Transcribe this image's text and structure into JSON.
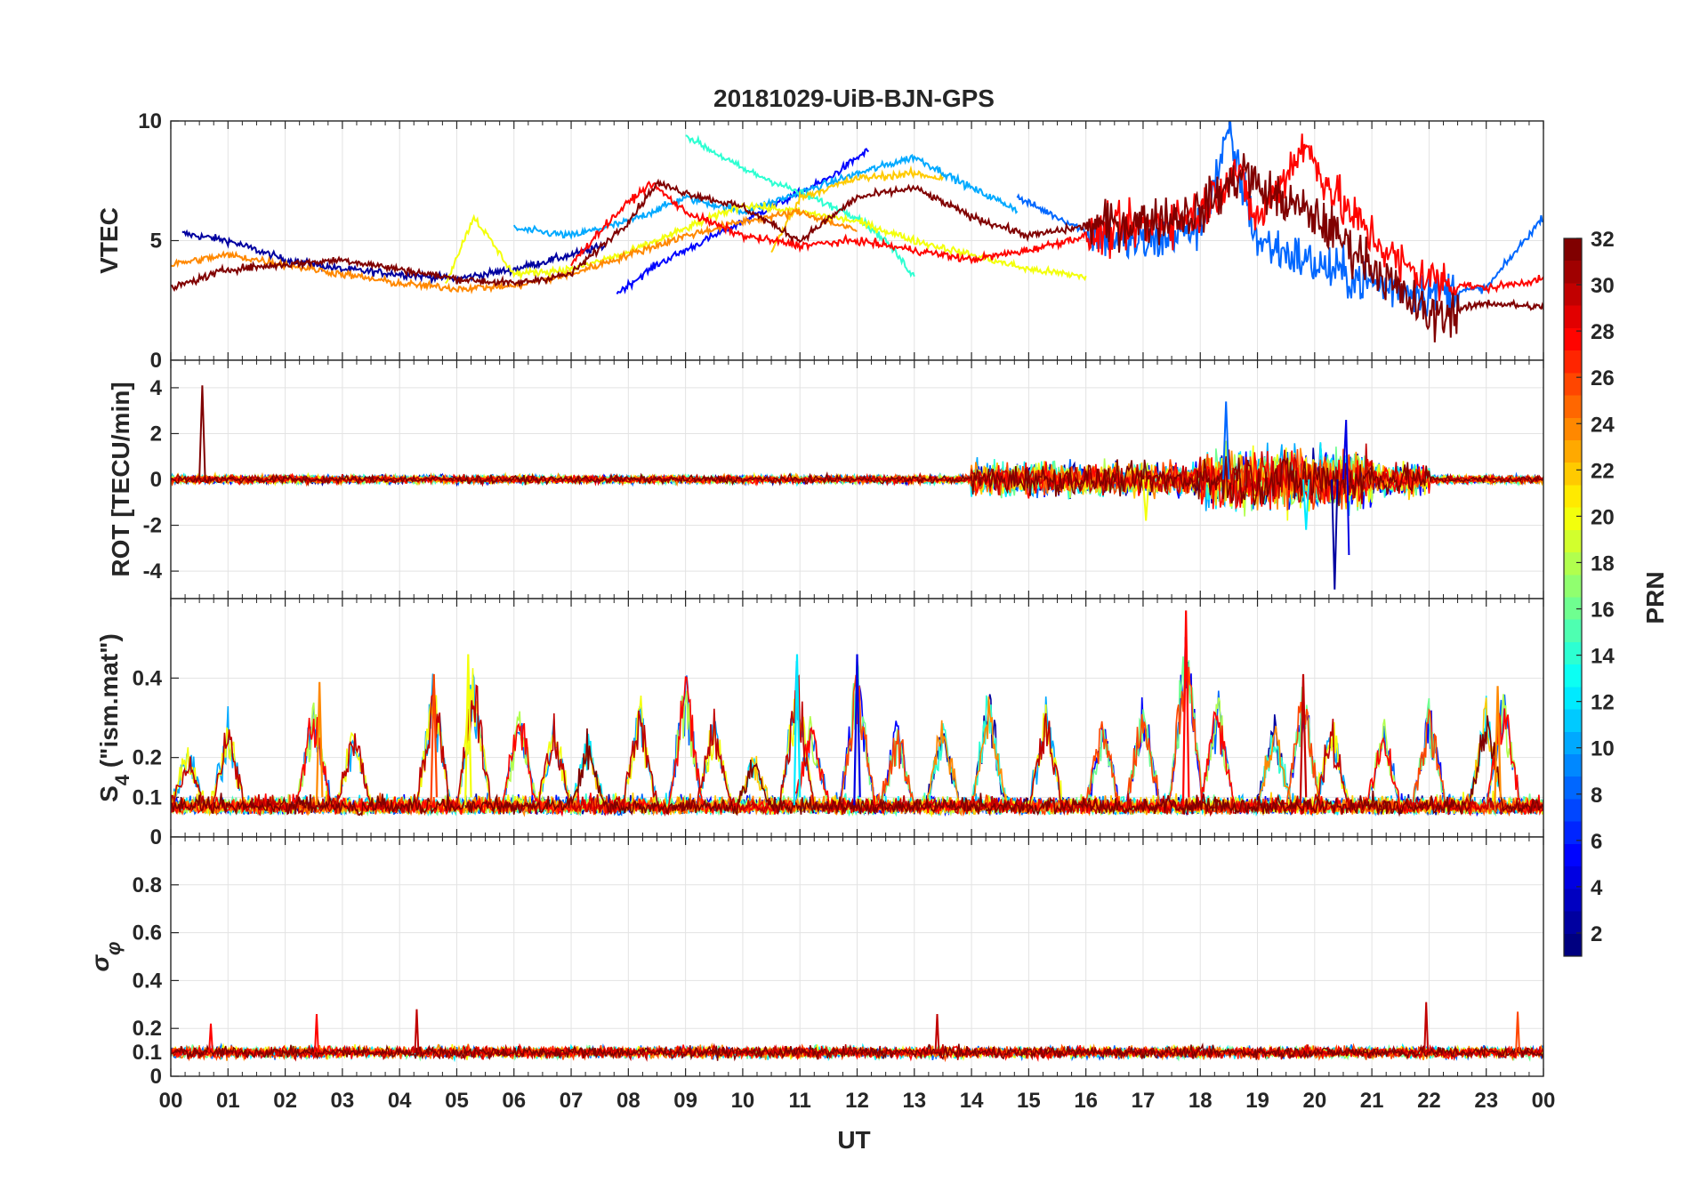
{
  "chart_data": {
    "type": "line",
    "title": "20181029-UiB-BJN-GPS",
    "xlabel": "UT",
    "xlim": [
      0,
      24
    ],
    "x_tick_labels": [
      "00",
      "01",
      "02",
      "03",
      "04",
      "05",
      "06",
      "07",
      "08",
      "09",
      "10",
      "11",
      "12",
      "13",
      "14",
      "15",
      "16",
      "17",
      "18",
      "19",
      "20",
      "21",
      "22",
      "23",
      "00"
    ],
    "grid": true,
    "colormap": "jet",
    "colorbar": {
      "label": "PRN",
      "range": [
        1,
        32
      ],
      "ticks": [
        "2",
        "4",
        "6",
        "8",
        "10",
        "12",
        "14",
        "16",
        "18",
        "20",
        "22",
        "24",
        "26",
        "28",
        "30",
        "32"
      ],
      "placement": "right"
    },
    "panels": [
      {
        "ylabel": "VTEC",
        "ylim": [
          0,
          10
        ],
        "y_ticks": [
          "0",
          "5",
          "10"
        ],
        "series": [
          {
            "prn": 2,
            "x": [
              0.2,
              1.0,
              2.0,
              3.0,
              4.0,
              5.0,
              6.0,
              7.0,
              7.6
            ],
            "y": [
              5.3,
              5.0,
              4.2,
              3.8,
              3.6,
              3.4,
              3.8,
              4.4,
              4.8
            ]
          },
          {
            "prn": 5,
            "x": [
              7.8,
              8.5,
              9.5,
              10.5,
              11.5,
              12.2
            ],
            "y": [
              2.8,
              4.0,
              5.2,
              6.4,
              7.6,
              8.8
            ]
          },
          {
            "prn": 10,
            "x": [
              6.0,
              7.0,
              8.0,
              9.0,
              10.0,
              11.0,
              12.0,
              13.0,
              14.0,
              14.8
            ],
            "y": [
              5.5,
              5.2,
              5.8,
              6.8,
              6.2,
              7.0,
              7.8,
              8.5,
              7.2,
              6.3
            ]
          },
          {
            "prn": 8,
            "x": [
              14.8,
              16.0,
              17.0,
              18.0,
              18.5,
              19.0,
              20.0,
              21.0,
              22.0,
              23.0,
              24.0
            ],
            "y": [
              6.8,
              5.4,
              4.8,
              5.6,
              9.4,
              5.0,
              4.0,
              3.2,
              2.8,
              3.0,
              6.0
            ]
          },
          {
            "prn": 14,
            "x": [
              9.0,
              10.0,
              11.0,
              12.0,
              12.5,
              13.0
            ],
            "y": [
              9.4,
              8.0,
              7.0,
              6.0,
              5.0,
              3.5
            ]
          },
          {
            "prn": 20,
            "x": [
              4.8,
              5.3,
              6.0,
              7.0,
              8.0,
              9.0,
              10.0,
              11.0,
              12.0,
              13.0,
              14.0,
              15.0,
              16.0
            ],
            "y": [
              3.2,
              6.0,
              3.6,
              3.8,
              4.5,
              5.5,
              6.5,
              6.2,
              5.8,
              5.0,
              4.4,
              3.8,
              3.5
            ]
          },
          {
            "prn": 22,
            "x": [
              10.5,
              11.0,
              12.0,
              13.0,
              13.5
            ],
            "y": [
              4.5,
              6.8,
              7.6,
              7.8,
              7.6
            ]
          },
          {
            "prn": 24,
            "x": [
              0.0,
              1.0,
              2.0,
              3.0,
              4.0,
              5.0,
              6.0,
              7.0,
              8.0,
              9.0,
              10.0,
              11.0,
              12.0
            ],
            "y": [
              4.0,
              4.4,
              4.0,
              3.6,
              3.2,
              3.0,
              3.1,
              3.6,
              4.4,
              5.2,
              5.8,
              6.2,
              5.4
            ]
          },
          {
            "prn": 28,
            "x": [
              7.0,
              7.5,
              8.0,
              8.4,
              9.0,
              10.0,
              11.0,
              12.0,
              13.0,
              14.0,
              15.0,
              16.0,
              17.0,
              18.0,
              18.6,
              19.0,
              19.8,
              20.5,
              21.5,
              22.0,
              23.0,
              24.0
            ],
            "y": [
              4.0,
              5.4,
              6.6,
              7.4,
              6.2,
              5.2,
              4.8,
              5.0,
              4.6,
              4.2,
              4.6,
              5.2,
              5.6,
              6.2,
              8.0,
              5.8,
              9.0,
              6.4,
              4.0,
              3.4,
              3.0,
              3.4
            ]
          },
          {
            "prn": 32,
            "x": [
              0.0,
              1.0,
              2.0,
              3.0,
              4.0,
              5.0,
              6.0,
              7.0,
              8.0,
              8.5,
              9.0,
              10.0,
              11.0,
              12.0,
              13.0,
              14.0,
              15.0,
              16.0,
              17.0,
              18.0,
              18.8,
              19.0,
              20.0,
              21.0,
              21.5,
              22.0,
              23.0,
              24.0
            ],
            "y": [
              3.0,
              3.8,
              4.0,
              4.2,
              3.8,
              3.4,
              3.2,
              3.6,
              5.8,
              7.4,
              7.0,
              6.4,
              5.0,
              6.8,
              7.2,
              6.0,
              5.2,
              5.6,
              5.8,
              6.2,
              8.0,
              7.2,
              6.0,
              4.0,
              2.8,
              1.8,
              2.4,
              2.2
            ]
          }
        ]
      },
      {
        "ylabel": "ROT [TECU/min]",
        "ylim": [
          -5.2,
          5.2
        ],
        "y_ticks": [
          "-4",
          "-2",
          "0",
          "2",
          "4"
        ],
        "series": [
          {
            "prn": 32,
            "x": [
              0.5,
              0.55,
              0.6
            ],
            "y": [
              0.0,
              4.1,
              0.0
            ]
          },
          {
            "prn": 8,
            "x": [
              18.4,
              18.45,
              18.5
            ],
            "y": [
              0.0,
              3.4,
              0.0
            ]
          },
          {
            "prn": 2,
            "x": [
              20.3,
              20.35,
              20.4
            ],
            "y": [
              0.0,
              -4.8,
              0.0
            ]
          },
          {
            "prn": 4,
            "x": [
              20.5,
              20.55,
              20.6
            ],
            "y": [
              0.0,
              2.6,
              -3.3
            ]
          },
          {
            "prn": 20,
            "x": [
              17.0,
              17.05,
              17.1
            ],
            "y": [
              0.0,
              -1.8,
              0.0
            ]
          },
          {
            "prn": 12,
            "x": [
              19.8,
              19.85,
              19.9
            ],
            "y": [
              0.0,
              -2.2,
              0.0
            ]
          }
        ]
      },
      {
        "ylabel": "S4 (\"ism.mat\")",
        "ylabel_main": "S",
        "ylabel_sub": "4",
        "ylabel_rest": " (\"ism.mat\")",
        "ylim": [
          0,
          0.6
        ],
        "y_ticks": [
          "0",
          "0.1",
          "0.2",
          "0.4"
        ],
        "peaks": [
          {
            "prn": 28,
            "x": 17.75,
            "y": 0.57
          },
          {
            "prn": 4,
            "x": 12.0,
            "y": 0.46
          },
          {
            "prn": 20,
            "x": 5.2,
            "y": 0.46
          },
          {
            "prn": 12,
            "x": 10.95,
            "y": 0.46
          },
          {
            "prn": 26,
            "x": 4.6,
            "y": 0.41
          },
          {
            "prn": 30,
            "x": 19.8,
            "y": 0.41
          },
          {
            "prn": 24,
            "x": 23.2,
            "y": 0.38
          },
          {
            "prn": 24,
            "x": 2.6,
            "y": 0.39
          }
        ]
      },
      {
        "ylabel": "σ φ",
        "ylabel_main": "σ",
        "ylabel_sub": "φ",
        "ylim": [
          0,
          1
        ],
        "y_ticks": [
          "0",
          "0.1",
          "0.2",
          "0.4",
          "0.6",
          "0.8"
        ],
        "peaks": [
          {
            "prn": 30,
            "x": 21.95,
            "y": 0.31
          },
          {
            "prn": 30,
            "x": 4.3,
            "y": 0.28
          },
          {
            "prn": 28,
            "x": 2.55,
            "y": 0.26
          },
          {
            "prn": 30,
            "x": 13.4,
            "y": 0.26
          },
          {
            "prn": 26,
            "x": 23.55,
            "y": 0.27
          },
          {
            "prn": 28,
            "x": 0.7,
            "y": 0.22
          }
        ]
      }
    ]
  }
}
